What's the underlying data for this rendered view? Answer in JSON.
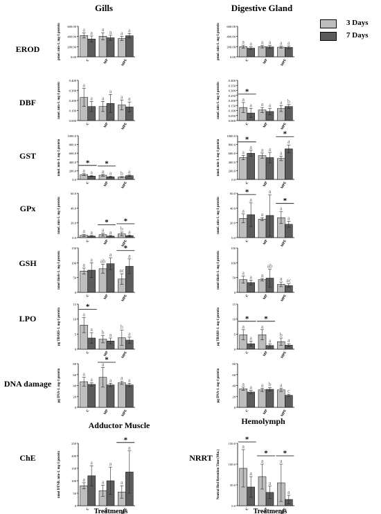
{
  "column_titles": [
    "Gills",
    "Digestive Gland"
  ],
  "bottom_titles": [
    "Adductor Muscle",
    "Hemolymph"
  ],
  "row_labels": [
    "EROD",
    "DBF",
    "GST",
    "GPx",
    "GSH",
    "LPO",
    "DNA damage",
    "ChE",
    "NRRT"
  ],
  "xlabel": "Treatments",
  "legend": {
    "s1": "3 Days",
    "s2": "7 Days"
  },
  "colors": {
    "s1": "#bdbdbd",
    "s2": "#5c5c5c"
  },
  "chart_data": [
    {
      "type": "bar",
      "panel": "EROD Gills",
      "title": "",
      "xlabel": "",
      "ylabel": "pmol. min-1. mg-1 protein",
      "categories": [
        "C",
        "MP",
        "MPE"
      ],
      "ylim": [
        0,
        600
      ],
      "yticks": [
        "0.00",
        "200.00",
        "400.00",
        "600.00"
      ],
      "series": [
        {
          "name": "3 Days",
          "values": [
            420,
            405,
            360
          ],
          "err": [
            50,
            70,
            40
          ],
          "labels": [
            "a",
            "a",
            "a"
          ]
        },
        {
          "name": "7 Days",
          "values": [
            350,
            375,
            415
          ],
          "err": [
            60,
            50,
            45
          ],
          "labels": [
            "a",
            "a",
            "a"
          ]
        }
      ],
      "significance": []
    },
    {
      "type": "bar",
      "panel": "EROD Digestive Gland",
      "title": "",
      "xlabel": "",
      "ylabel": "pmol. min-1. mg-1 protein",
      "categories": [
        "C",
        "MP",
        "MPE"
      ],
      "ylim": [
        0,
        600
      ],
      "yticks": [
        "0.00",
        "200.00",
        "400.00",
        "600.00"
      ],
      "series": [
        {
          "name": "3 Days",
          "values": [
            200,
            200,
            190
          ],
          "err": [
            30,
            25,
            20
          ],
          "labels": [
            "a",
            "a",
            "a"
          ]
        },
        {
          "name": "7 Days",
          "values": [
            170,
            195,
            185
          ],
          "err": [
            25,
            30,
            25
          ],
          "labels": [
            "a",
            "a",
            "a"
          ]
        }
      ],
      "significance": []
    },
    {
      "type": "bar",
      "panel": "DBF Gills",
      "title": "",
      "xlabel": "",
      "ylabel": "nmol. min-1. mg-1 protein",
      "categories": [
        "C",
        "MP",
        "MPE"
      ],
      "ylim": [
        0,
        0.4
      ],
      "yticks": [
        "0.000",
        "0.100",
        "0.200",
        "0.300",
        "0.400"
      ],
      "series": [
        {
          "name": "3 Days",
          "values": [
            0.23,
            0.14,
            0.155
          ],
          "err": [
            0.09,
            0.05,
            0.05
          ],
          "labels": [
            "a",
            "a",
            "a"
          ]
        },
        {
          "name": "7 Days",
          "values": [
            0.14,
            0.17,
            0.135
          ],
          "err": [
            0.05,
            0.09,
            0.05
          ],
          "labels": [
            "a",
            "a",
            "a"
          ]
        }
      ],
      "significance": []
    },
    {
      "type": "bar",
      "panel": "DBF Digestive Gland",
      "title": "",
      "xlabel": "",
      "ylabel": "nmol. min-1. mg-1 protein",
      "categories": [
        "C",
        "MP",
        "MPE"
      ],
      "ylim": [
        0,
        0.4
      ],
      "yticks": [
        "0.000",
        "0.050",
        "0.100",
        "0.150",
        "0.200",
        "0.250",
        "0.300",
        "0.350",
        "0.400"
      ],
      "series": [
        {
          "name": "3 Days",
          "values": [
            0.13,
            0.105,
            0.12
          ],
          "err": [
            0.05,
            0.025,
            0.03
          ],
          "labels": [
            "a",
            "a",
            "a"
          ]
        },
        {
          "name": "7 Days",
          "values": [
            0.075,
            0.09,
            0.14
          ],
          "err": [
            0.045,
            0.03,
            0.02
          ],
          "labels": [
            "a",
            "a",
            "b"
          ]
        }
      ],
      "significance": [
        "C"
      ]
    },
    {
      "type": "bar",
      "panel": "GST Gills",
      "title": "",
      "xlabel": "",
      "ylabel": "nmol. min-1. mg-1 protein",
      "categories": [
        "C",
        "MP",
        "MPE"
      ],
      "ylim": [
        0,
        1000
      ],
      "yticks": [
        "0.0",
        "200.0",
        "400.0",
        "600.0",
        "800.0",
        "1000.0"
      ],
      "series": [
        {
          "name": "3 Days",
          "values": [
            110,
            95,
            55
          ],
          "err": [
            20,
            20,
            10
          ],
          "labels": [
            "a",
            "a",
            "b"
          ]
        },
        {
          "name": "7 Days",
          "values": [
            75,
            60,
            85
          ],
          "err": [
            15,
            15,
            15
          ],
          "labels": [
            "a",
            "a",
            "a"
          ]
        }
      ],
      "significance": [
        "C",
        "MP"
      ]
    },
    {
      "type": "bar",
      "panel": "GST Digestive Gland",
      "title": "",
      "xlabel": "",
      "ylabel": "nmol. min-1. mg-1 protein",
      "categories": [
        "C",
        "MP",
        "MPE"
      ],
      "ylim": [
        0,
        1000
      ],
      "yticks": [
        "0.0",
        "200.0",
        "400.0",
        "600.0",
        "800.0",
        "1000.0"
      ],
      "series": [
        {
          "name": "3 Days",
          "values": [
            500,
            545,
            480
          ],
          "err": [
            50,
            60,
            50
          ],
          "labels": [
            "a",
            "a",
            "a"
          ]
        },
        {
          "name": "7 Days",
          "values": [
            600,
            500,
            700
          ],
          "err": [
            70,
            120,
            90
          ],
          "labels": [
            "a",
            "a",
            "a"
          ]
        }
      ],
      "significance": [
        "C",
        "MPE"
      ]
    },
    {
      "type": "bar",
      "panel": "GPx Gills",
      "title": "",
      "xlabel": "",
      "ylabel": "nmol. min-1. mg-1 protein",
      "categories": [
        "C",
        "MP",
        "MPE"
      ],
      "ylim": [
        0,
        60
      ],
      "yticks": [
        "0.0",
        "20.0",
        "40.0",
        "60.0"
      ],
      "series": [
        {
          "name": "3 Days",
          "values": [
            3,
            4,
            5
          ],
          "err": [
            1.5,
            2,
            2.5
          ],
          "labels": [
            "a",
            "a",
            "b"
          ]
        },
        {
          "name": "7 Days",
          "values": [
            2,
            2,
            2.5
          ],
          "err": [
            1,
            1,
            1
          ],
          "labels": [
            "a",
            "a",
            "a"
          ]
        }
      ],
      "significance": [
        "MP",
        "MPE"
      ]
    },
    {
      "type": "bar",
      "panel": "GPx Digestive Gland",
      "title": "",
      "xlabel": "",
      "ylabel": "nmol. min-1. mg-1 protein",
      "categories": [
        "C",
        "MP",
        "MPE"
      ],
      "ylim": [
        0,
        60
      ],
      "yticks": [
        "0.0",
        "20.0",
        "40.0",
        "60.0"
      ],
      "series": [
        {
          "name": "3 Days",
          "values": [
            26,
            25,
            27
          ],
          "err": [
            6,
            2,
            8
          ],
          "labels": [
            "a",
            "a",
            "a"
          ]
        },
        {
          "name": "7 Days",
          "values": [
            31,
            30,
            18
          ],
          "err": [
            16,
            28,
            4
          ],
          "labels": [
            "a",
            "a",
            "a"
          ]
        }
      ],
      "significance": [
        "C",
        "MPE"
      ]
    },
    {
      "type": "bar",
      "panel": "GSH Gills",
      "title": "",
      "xlabel": "",
      "ylabel": "nmol thiols-1. mg-1 protein",
      "categories": [
        "C",
        "MP",
        "MPE"
      ],
      "ylim": [
        0,
        150
      ],
      "yticks": [
        "0",
        "50",
        "100",
        "150"
      ],
      "series": [
        {
          "name": "3 Days",
          "values": [
            72,
            80,
            45
          ],
          "err": [
            10,
            15,
            18
          ],
          "labels": [
            "a",
            "ab",
            "ac"
          ]
        },
        {
          "name": "7 Days",
          "values": [
            75,
            97,
            88
          ],
          "err": [
            25,
            20,
            25
          ],
          "labels": [
            "a",
            "a",
            "a"
          ]
        }
      ],
      "significance": [
        "MPE"
      ]
    },
    {
      "type": "bar",
      "panel": "GSH Digestive Gland",
      "title": "",
      "xlabel": "",
      "ylabel": "nmol thiols-1. mg-1 protein",
      "categories": [
        "C",
        "MP",
        "MPE"
      ],
      "ylim": [
        0,
        150
      ],
      "yticks": [
        "0",
        "50",
        "100",
        "150"
      ],
      "series": [
        {
          "name": "3 Days",
          "values": [
            43,
            43,
            27
          ],
          "err": [
            12,
            4,
            8
          ],
          "labels": [
            "a",
            "a",
            "a"
          ]
        },
        {
          "name": "7 Days",
          "values": [
            33,
            48,
            23
          ],
          "err": [
            8,
            30,
            6
          ],
          "labels": [
            "a",
            "ab",
            "ac"
          ]
        }
      ],
      "significance": []
    },
    {
      "type": "bar",
      "panel": "LPO Gills",
      "title": "",
      "xlabel": "",
      "ylabel": "µg TBARS-1. mg-1 protein",
      "categories": [
        "C",
        "MP",
        "MPE"
      ],
      "ylim": [
        0,
        15
      ],
      "yticks": [
        "0",
        "5",
        "10",
        "15"
      ],
      "series": [
        {
          "name": "3 Days",
          "values": [
            8,
            3.3,
            3.8
          ],
          "err": [
            2.5,
            1.2,
            2.5
          ],
          "labels": [
            "a",
            "b",
            "b"
          ]
        },
        {
          "name": "7 Days",
          "values": [
            3.7,
            2.7,
            3
          ],
          "err": [
            1.8,
            1,
            1
          ],
          "labels": [
            "a",
            "a",
            "a"
          ]
        }
      ],
      "significance": [
        "C"
      ]
    },
    {
      "type": "bar",
      "panel": "LPO Digestive Gland",
      "title": "",
      "xlabel": "",
      "ylabel": "µg TBARS-1. mg-1 protein",
      "categories": [
        "C",
        "MP",
        "MPE"
      ],
      "ylim": [
        0,
        15
      ],
      "yticks": [
        "0",
        "5",
        "10",
        "15"
      ],
      "series": [
        {
          "name": "3 Days",
          "values": [
            4.8,
            4.8,
            2.5
          ],
          "err": [
            1.7,
            1.7,
            1.2
          ],
          "labels": [
            "a",
            "a",
            "b"
          ]
        },
        {
          "name": "7 Days",
          "values": [
            1.8,
            1.2,
            1.3
          ],
          "err": [
            0.8,
            0.5,
            0.5
          ],
          "labels": [
            "a",
            "a",
            "a"
          ]
        }
      ],
      "significance": [
        "C",
        "MP"
      ]
    },
    {
      "type": "bar",
      "panel": "DNA damage Gills",
      "title": "",
      "xlabel": "",
      "ylabel": "µg DNA-1. mg-1 protein",
      "categories": [
        "C",
        "MP",
        "MPE"
      ],
      "ylim": [
        0,
        80
      ],
      "yticks": [
        "0",
        "20",
        "40",
        "60",
        "80"
      ],
      "series": [
        {
          "name": "3 Days",
          "values": [
            47,
            55,
            45
          ],
          "err": [
            8,
            18,
            3
          ],
          "labels": [
            "a",
            "a",
            "a"
          ]
        },
        {
          "name": "7 Days",
          "values": [
            42,
            41,
            41
          ],
          "err": [
            3,
            3,
            3
          ],
          "labels": [
            "a",
            "a",
            "a"
          ]
        }
      ],
      "significance": [
        "MP"
      ]
    },
    {
      "type": "bar",
      "panel": "DNA damage Digestive Gland",
      "title": "",
      "xlabel": "",
      "ylabel": "µg DNA-1. mg-1 protein",
      "categories": [
        "C",
        "MP",
        "MPE"
      ],
      "ylim": [
        0,
        80
      ],
      "yticks": [
        "0",
        "20",
        "40",
        "60",
        "80"
      ],
      "series": [
        {
          "name": "3 Days",
          "values": [
            34,
            32,
            32
          ],
          "err": [
            3,
            3,
            3
          ],
          "labels": [
            "a",
            "a",
            "a"
          ]
        },
        {
          "name": "7 Days",
          "values": [
            28,
            33,
            22
          ],
          "err": [
            3,
            3,
            2
          ],
          "labels": [
            "a",
            "b",
            "c"
          ]
        }
      ],
      "significance": []
    },
    {
      "type": "bar",
      "panel": "ChE Adductor Muscle",
      "title": "Adductor Muscle",
      "xlabel": "Treatments",
      "ylabel": "nmol DTNB. min-1. mg-1 protein",
      "categories": [
        "C",
        "MP",
        "MPE"
      ],
      "ylim": [
        0,
        250
      ],
      "yticks": [
        "0",
        "50",
        "100",
        "150",
        "200",
        "250"
      ],
      "series": [
        {
          "name": "3 Days",
          "values": [
            80,
            60,
            55
          ],
          "err": [
            12,
            22,
            25
          ],
          "labels": [
            "a",
            "a",
            "a"
          ]
        },
        {
          "name": "7 Days",
          "values": [
            120,
            100,
            135
          ],
          "err": [
            40,
            55,
            85
          ],
          "labels": [
            "a",
            "a",
            "a"
          ]
        }
      ],
      "significance": [
        "MPE"
      ]
    },
    {
      "type": "bar",
      "panel": "NRRT Hemolymph",
      "title": "Hemolymph",
      "xlabel": "Treatments",
      "ylabel": "Neutral Red Retention Time (Min.)",
      "categories": [
        "C",
        "MP",
        "MPE"
      ],
      "ylim": [
        0,
        150
      ],
      "yticks": [
        "0.0",
        "50.0",
        "100.0",
        "150.0"
      ],
      "series": [
        {
          "name": "3 Days",
          "values": [
            90,
            70,
            55
          ],
          "err": [
            45,
            30,
            45
          ],
          "labels": [
            "a",
            "a",
            "a"
          ]
        },
        {
          "name": "7 Days",
          "values": [
            45,
            32,
            15
          ],
          "err": [
            25,
            15,
            10
          ],
          "labels": [
            "a",
            "a",
            "a"
          ]
        }
      ],
      "significance": [
        "C",
        "MP",
        "MPE"
      ]
    }
  ]
}
